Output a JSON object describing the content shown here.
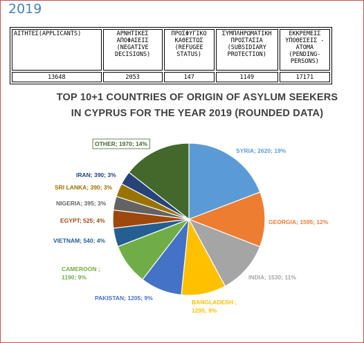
{
  "page": {
    "year": "2019"
  },
  "stats_table": {
    "headers": [
      "ΑΙΤΗΤΕΣ(APPLICANTS)",
      "ΑΡΝΗΤΙΚΕΣ ΑΠΟΦΑΣΕΙΣ (NEGATIVE DECISIONS)",
      "ΠΡΟΣΦΥΓΙΚΟ ΚΑΘΕΣΤΩΣ (REFUGEE STATUS)",
      "ΣΥΜΠΛΗΡΩΜΑΤΙΚΗ ΠΡΟΣΤΑΣΙΑ (SUBSIDIARY PROTECTION)",
      "ΕΚΚΡΕΜΕΙΣ ΥΠΟΘΕΣΕΙΣ - ΑΤΟΜΑ (PENDING-PERSONS)"
    ],
    "values": [
      "13648",
      "2053",
      "147",
      "1149",
      "17171"
    ]
  },
  "chart_data": {
    "type": "pie",
    "title": "TOP 10+1 COUNTRIES OF ORIGIN OF ASYLUM SEEKERS IN CYPRUS FOR THE YEAR 2019 (ROUNDED DATA)",
    "title_lines": [
      "TOP 10+1 COUNTRIES OF ORIGIN OF ASYLUM SEEKERS",
      "IN CYPRUS FOR THE YEAR 2019 (ROUNDED DATA)"
    ],
    "slices": [
      {
        "name": "SYRIA",
        "value": 2620,
        "percent": "19%",
        "color": "#5b9bd5",
        "label": "SYRIA; 2620; 19%"
      },
      {
        "name": "GEORGIA",
        "value": 1595,
        "percent": "12%",
        "color": "#ed7d31",
        "label": "GEORGIA; 1595; 12%"
      },
      {
        "name": "INDIA",
        "value": 1530,
        "percent": "11%",
        "color": "#a5a5a5",
        "label": "INDIA; 1530; 11%"
      },
      {
        "name": "BANGLADESH",
        "value": 1295,
        "percent": "9%",
        "color": "#ffc000",
        "label": "BANGLADESH ; 1295; 9%"
      },
      {
        "name": "PAKISTAN",
        "value": 1205,
        "percent": "9%",
        "color": "#4472c4",
        "label": "PAKISTAN; 1205; 9%"
      },
      {
        "name": "CAMEROON",
        "value": 1190,
        "percent": "9%",
        "color": "#70ad47",
        "label": "CAMEROON ; 1190; 9%"
      },
      {
        "name": "VIETNAM",
        "value": 540,
        "percent": "4%",
        "color": "#255e91",
        "label": "VIETNAM; 540; 4%"
      },
      {
        "name": "EGYPT",
        "value": 525,
        "percent": "4%",
        "color": "#9e480e",
        "label": "EGYPT; 525; 4%"
      },
      {
        "name": "NIGERIA",
        "value": 395,
        "percent": "3%",
        "color": "#636363",
        "label": "NIGERIA; 395; 3%"
      },
      {
        "name": "SRI LANKA",
        "value": 390,
        "percent": "3%",
        "color": "#997300",
        "label": "SRI LANKA; 390; 3%"
      },
      {
        "name": "IRAN",
        "value": 390,
        "percent": "3%",
        "color": "#264478",
        "label": "IRAN; 390; 3%"
      },
      {
        "name": "OTHER",
        "value": 1970,
        "percent": "14%",
        "color": "#43682b",
        "label": "OTHER; 1970; 14%"
      }
    ]
  }
}
